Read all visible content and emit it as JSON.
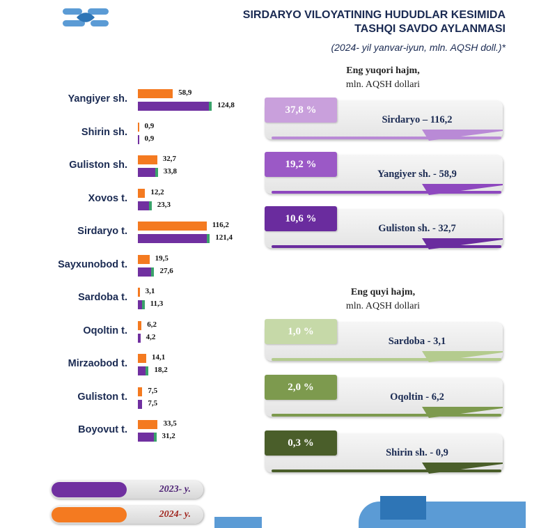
{
  "header": {
    "title_line1": "SIRDARYO VILOYATINING HUDUDLAR KESIMIDA",
    "title_line2": "TASHQI SAVDO AYLANMASI",
    "subtitle": "(2024- yil yanvar-iyun, mln. AQSH doll.)*"
  },
  "chart_data": {
    "type": "bar",
    "orientation": "horizontal",
    "categories": [
      "Yangiyer sh.",
      "Shirin sh.",
      "Guliston sh.",
      "Xovos t.",
      "Sirdaryo t.",
      "Sayxunobod t.",
      "Sardoba t.",
      "Oqoltin t.",
      "Mirzaobod t.",
      "Guliston t.",
      "Boyovut t."
    ],
    "series": [
      {
        "name": "2024- y.",
        "color": "#f47a20",
        "values": [
          58.9,
          0.9,
          32.7,
          12.2,
          116.2,
          19.5,
          3.1,
          6.2,
          14.1,
          7.5,
          33.5
        ],
        "labels": [
          "58,9",
          "0,9",
          "32,7",
          "12,2",
          "116,2",
          "19,5",
          "3,1",
          "6,2",
          "14,1",
          "7,5",
          "33,5"
        ]
      },
      {
        "name": "2023- y.",
        "color": "#7030a0",
        "values": [
          124.8,
          0.9,
          33.8,
          23.3,
          121.4,
          27.6,
          11.3,
          4.2,
          18.2,
          7.5,
          31.2
        ],
        "labels": [
          "124,8",
          "0,9",
          "33,8",
          "23,3",
          "121,4",
          "27,6",
          "11,3",
          "4,2",
          "18,2",
          "7,5",
          "31,2"
        ]
      }
    ],
    "legend": [
      {
        "label": "2023- y.",
        "color": "#7030a0"
      },
      {
        "label": "2024- y.",
        "color": "#f47a20"
      }
    ],
    "grid": false
  },
  "top_section": {
    "heading": "Eng yuqori hajm,",
    "unit": "mln. AQSH dollari",
    "cards": [
      {
        "percent": "37,8 %",
        "label": "Sirdaryo – 116,2",
        "color": "#c9a0dc",
        "accent": "#b98ad6"
      },
      {
        "percent": "19,2 %",
        "label": "Yangiyer sh. - 58,9",
        "color": "#9b59c6",
        "accent": "#8e48bf"
      },
      {
        "percent": "10,6 %",
        "label": "Guliston sh.  - 32,7",
        "color": "#6a2c9e",
        "accent": "#6a2c9e"
      }
    ]
  },
  "bottom_section": {
    "heading": "Eng quyi hajm,",
    "unit": "mln. AQSH dollari",
    "cards": [
      {
        "percent": "1,0 %",
        "label": "Sardoba -  3,1",
        "color": "#c6d9a8",
        "accent": "#b4cb8e"
      },
      {
        "percent": "2,0 %",
        "label": "Oqoltin - 6,2",
        "color": "#7d9a4e",
        "accent": "#7d9a4e"
      },
      {
        "percent": "0,3 %",
        "label": "Shirin sh. - 0,9",
        "color": "#4a5e2a",
        "accent": "#4a5e2a"
      }
    ]
  }
}
